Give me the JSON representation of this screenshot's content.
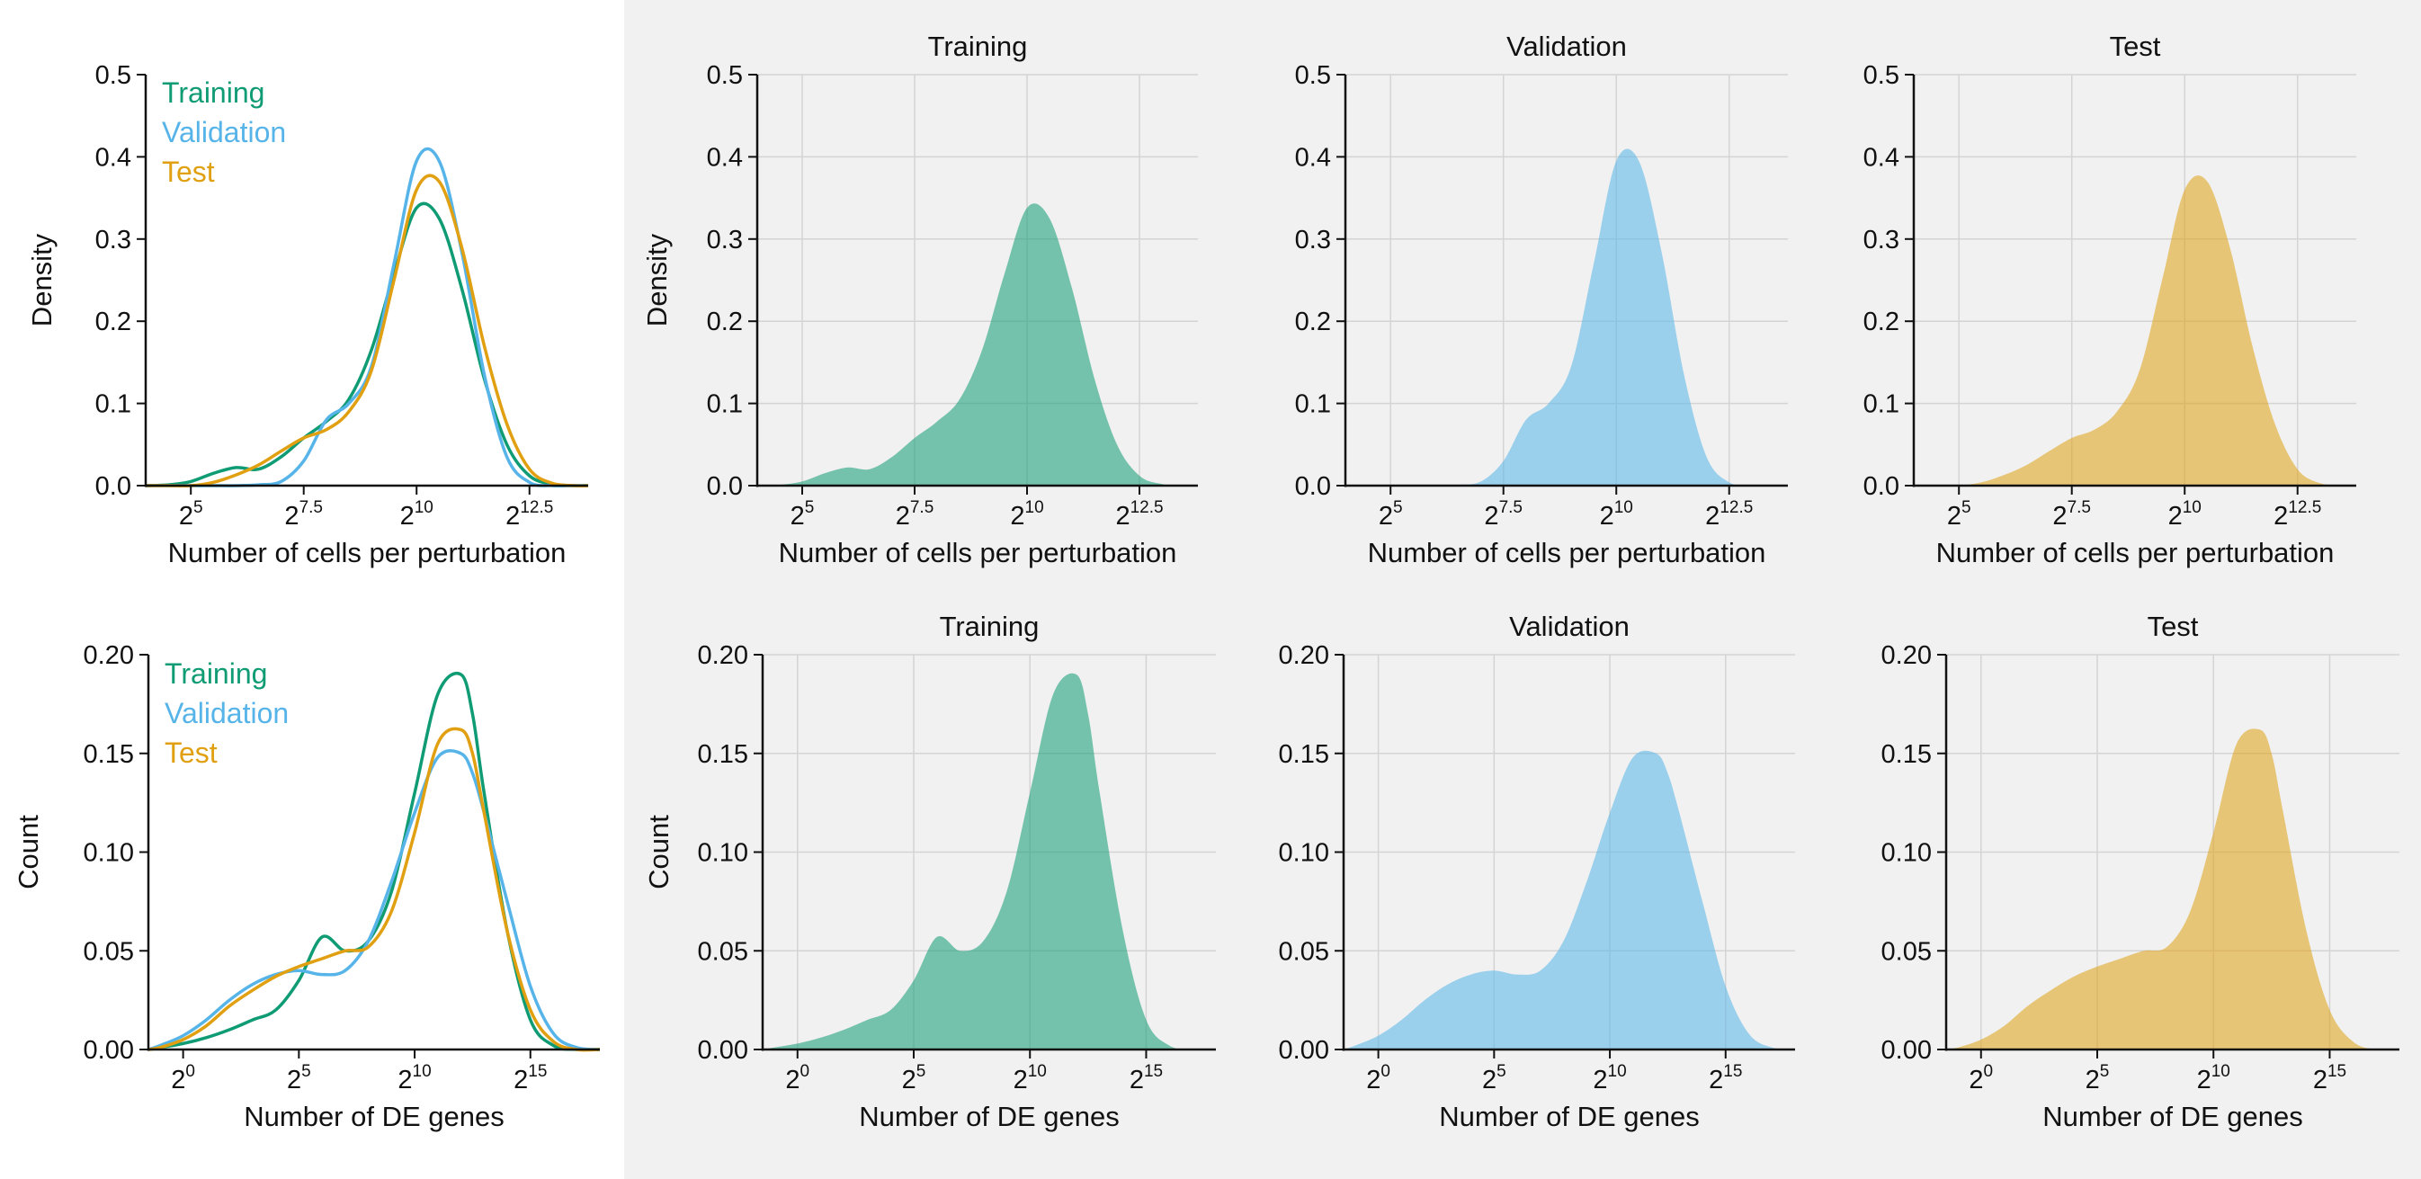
{
  "colors": {
    "training": "#0f9b74",
    "validation": "#56b4e9",
    "test": "#e0a012",
    "shade": "#f0f1f0"
  },
  "rows": [
    {
      "xlabel": "Number of cells per perturbation",
      "ylabel": "Density",
      "xlim": [
        4,
        13.8
      ],
      "ylim": [
        0,
        0.5
      ],
      "yticks": [
        0,
        0.1,
        0.2,
        0.3,
        0.4,
        0.5
      ],
      "ytick_labels": [
        "0.0",
        "0.1",
        "0.2",
        "0.3",
        "0.4",
        "0.5"
      ],
      "xticks": [
        5,
        7.5,
        10,
        12.5
      ],
      "xtick_base": "2",
      "xtick_exps": [
        "5",
        "7.5",
        "10",
        "12.5"
      ]
    },
    {
      "xlabel": "Number of DE genes",
      "ylabel": "Count",
      "xlim": [
        -1.5,
        18
      ],
      "ylim": [
        0,
        0.2
      ],
      "yticks": [
        0,
        0.05,
        0.1,
        0.15,
        0.2
      ],
      "ytick_labels": [
        "0.00",
        "0.05",
        "0.10",
        "0.15",
        "0.20"
      ],
      "xticks": [
        0,
        5,
        10,
        15
      ],
      "xtick_base": "2",
      "xtick_exps": [
        "0",
        "5",
        "10",
        "15"
      ]
    }
  ],
  "legend": [
    "Training",
    "Validation",
    "Test"
  ],
  "panel_titles": [
    "Training",
    "Validation",
    "Test"
  ],
  "chart_data": [
    {
      "type": "line",
      "subtype": "kde-overlay",
      "title": "",
      "xlabel": "Number of cells per perturbation",
      "ylabel": "Density",
      "x_scale": "log2",
      "xlim": [
        4,
        13.8
      ],
      "ylim": [
        0,
        0.5
      ],
      "series": [
        {
          "name": "Training",
          "key": "training",
          "x": [
            4,
            4.5,
            5,
            5.5,
            6,
            6.5,
            7,
            7.5,
            8,
            8.5,
            9,
            9.5,
            10,
            10.5,
            11,
            11.5,
            12,
            12.5,
            13,
            13.5,
            13.8
          ],
          "values": [
            0,
            0.001,
            0.005,
            0.015,
            0.022,
            0.02,
            0.035,
            0.058,
            0.078,
            0.105,
            0.165,
            0.258,
            0.338,
            0.325,
            0.24,
            0.13,
            0.05,
            0.012,
            0.002,
            0,
            0
          ]
        },
        {
          "name": "Validation",
          "key": "validation",
          "x": [
            4,
            4.5,
            5,
            5.5,
            6,
            6.5,
            7,
            7.5,
            8,
            8.5,
            9,
            9.5,
            10,
            10.5,
            11,
            11.5,
            12,
            12.5,
            13,
            13.5,
            13.8
          ],
          "values": [
            0,
            0,
            0,
            0,
            0,
            0.001,
            0.005,
            0.03,
            0.08,
            0.1,
            0.145,
            0.27,
            0.395,
            0.395,
            0.285,
            0.135,
            0.035,
            0.004,
            0,
            0,
            0
          ]
        },
        {
          "name": "Test",
          "key": "test",
          "x": [
            4,
            4.5,
            5,
            5.5,
            6,
            6.5,
            7,
            7.5,
            8,
            8.5,
            9,
            9.5,
            10,
            10.5,
            11,
            11.5,
            12,
            12.5,
            13,
            13.5,
            13.8
          ],
          "values": [
            0,
            0,
            0,
            0.004,
            0.013,
            0.025,
            0.042,
            0.058,
            0.068,
            0.09,
            0.14,
            0.25,
            0.36,
            0.37,
            0.29,
            0.17,
            0.075,
            0.02,
            0.003,
            0,
            0
          ]
        }
      ]
    },
    {
      "type": "area",
      "subtype": "kde-panels",
      "title": "",
      "panel_titles": [
        "Training",
        "Validation",
        "Test"
      ],
      "xlabel": "Number of cells per perturbation",
      "ylabel": "Density",
      "x_scale": "log2",
      "xlim": [
        4,
        13.8
      ],
      "ylim": [
        0,
        0.5
      ],
      "series_ref": 0
    },
    {
      "type": "line",
      "subtype": "kde-overlay",
      "title": "",
      "xlabel": "Number of DE genes",
      "ylabel": "Count",
      "x_scale": "log2",
      "xlim": [
        -1.5,
        18
      ],
      "ylim": [
        0,
        0.2
      ],
      "series": [
        {
          "name": "Training",
          "key": "training",
          "x": [
            -1.5,
            -1,
            0,
            1,
            2,
            3,
            4,
            5,
            6,
            7,
            8,
            9,
            10,
            11,
            12,
            12.5,
            13,
            14,
            15,
            16,
            17,
            18
          ],
          "values": [
            0,
            0.001,
            0.003,
            0.006,
            0.01,
            0.015,
            0.02,
            0.035,
            0.057,
            0.05,
            0.055,
            0.08,
            0.13,
            0.18,
            0.19,
            0.17,
            0.13,
            0.06,
            0.015,
            0.002,
            0,
            0
          ]
        },
        {
          "name": "Validation",
          "key": "validation",
          "x": [
            -1.5,
            -1,
            0,
            1,
            2,
            3,
            4,
            5,
            6,
            7,
            8,
            9,
            10,
            11,
            12,
            12.5,
            13,
            14,
            15,
            16,
            17,
            18
          ],
          "values": [
            0,
            0.002,
            0.007,
            0.015,
            0.025,
            0.033,
            0.038,
            0.04,
            0.038,
            0.04,
            0.055,
            0.085,
            0.12,
            0.148,
            0.15,
            0.14,
            0.12,
            0.075,
            0.032,
            0.008,
            0.001,
            0
          ]
        },
        {
          "name": "Test",
          "key": "test",
          "x": [
            -1.5,
            -1,
            0,
            1,
            2,
            3,
            4,
            5,
            6,
            7,
            8,
            9,
            10,
            11,
            12,
            12.5,
            13,
            14,
            15,
            16,
            17,
            18
          ],
          "values": [
            0,
            0.001,
            0.005,
            0.012,
            0.022,
            0.03,
            0.037,
            0.042,
            0.046,
            0.05,
            0.052,
            0.07,
            0.11,
            0.155,
            0.162,
            0.15,
            0.12,
            0.06,
            0.02,
            0.004,
            0,
            0
          ]
        }
      ]
    },
    {
      "type": "area",
      "subtype": "kde-panels",
      "title": "",
      "panel_titles": [
        "Training",
        "Validation",
        "Test"
      ],
      "xlabel": "Number of DE genes",
      "ylabel": "Count",
      "x_scale": "log2",
      "xlim": [
        -1.5,
        18
      ],
      "ylim": [
        0,
        0.2
      ],
      "series_ref": 2
    }
  ]
}
